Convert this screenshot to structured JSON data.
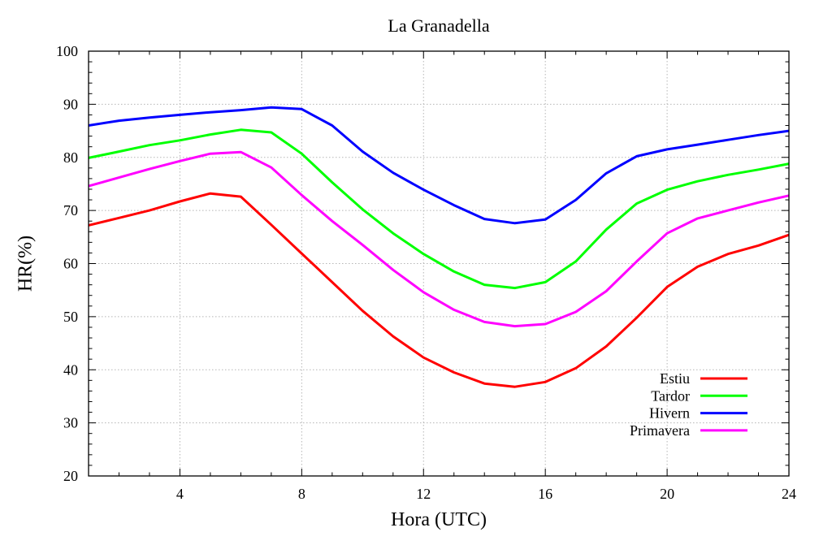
{
  "chart_data": {
    "type": "line",
    "title": "La Granadella",
    "xlabel": "Hora (UTC)",
    "ylabel": "HR(%)",
    "xlim": [
      1,
      24
    ],
    "ylim": [
      20,
      100
    ],
    "x_ticks": [
      4,
      8,
      12,
      16,
      20,
      24
    ],
    "y_ticks": [
      20,
      30,
      40,
      50,
      60,
      70,
      80,
      90,
      100
    ],
    "grid": true,
    "legend_position": "bottom-right",
    "x": [
      1,
      2,
      3,
      4,
      5,
      6,
      7,
      8,
      9,
      10,
      11,
      12,
      13,
      14,
      15,
      16,
      17,
      18,
      19,
      20,
      21,
      22,
      23,
      24
    ],
    "series": [
      {
        "name": "Estiu",
        "color": "#ff0000",
        "values": [
          67.2,
          68.6,
          70.0,
          71.7,
          73.2,
          72.6,
          67.3,
          61.9,
          56.5,
          51.1,
          46.3,
          42.3,
          39.5,
          37.4,
          36.8,
          37.7,
          40.3,
          44.4,
          49.8,
          55.6,
          59.4,
          61.8,
          63.4,
          65.4
        ]
      },
      {
        "name": "Tardor",
        "color": "#00ff00",
        "values": [
          79.9,
          81.1,
          82.3,
          83.2,
          84.3,
          85.2,
          84.7,
          80.7,
          75.3,
          70.2,
          65.7,
          61.8,
          58.5,
          56.0,
          55.4,
          56.5,
          60.4,
          66.4,
          71.3,
          73.9,
          75.5,
          76.7,
          77.7,
          78.8
        ]
      },
      {
        "name": "Hivern",
        "color": "#0000ff",
        "values": [
          86.0,
          86.9,
          87.5,
          88.0,
          88.5,
          88.9,
          89.4,
          89.1,
          86.0,
          81.1,
          77.1,
          73.9,
          71.0,
          68.4,
          67.6,
          68.3,
          72.0,
          77.0,
          80.2,
          81.5,
          82.4,
          83.3,
          84.2,
          85.0
        ]
      },
      {
        "name": "Primavera",
        "color": "#ff00ff",
        "values": [
          74.6,
          76.2,
          77.8,
          79.3,
          80.7,
          81.0,
          78.1,
          72.9,
          68.0,
          63.5,
          58.8,
          54.6,
          51.3,
          49.0,
          48.2,
          48.6,
          50.9,
          54.8,
          60.4,
          65.7,
          68.5,
          70.0,
          71.5,
          72.8
        ]
      }
    ]
  }
}
